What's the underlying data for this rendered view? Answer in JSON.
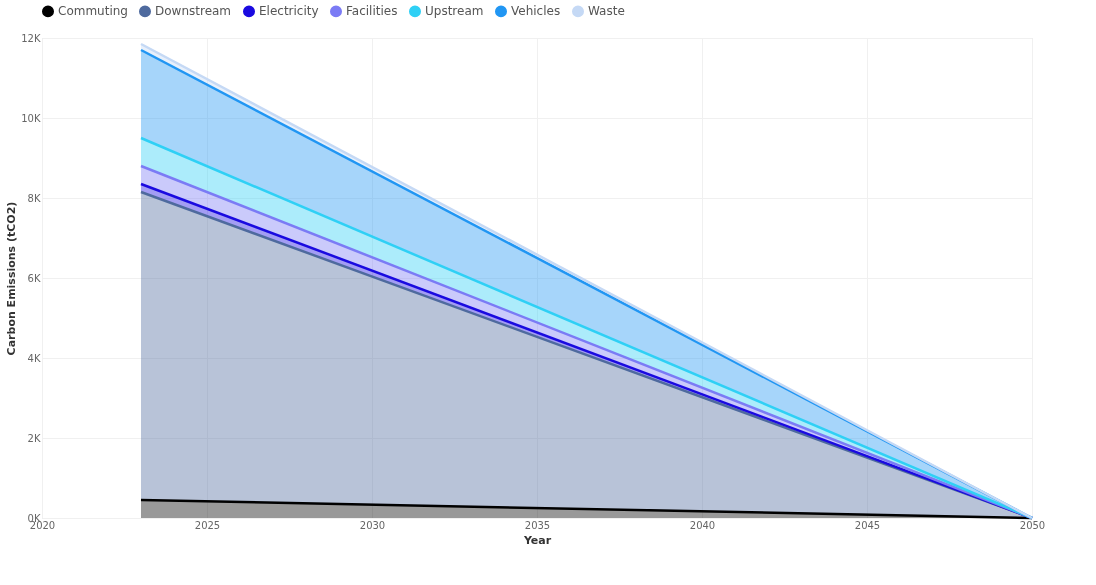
{
  "chart_data": {
    "type": "area",
    "stacked": true,
    "xlabel": "Year",
    "ylabel": "Carbon Emissions (tCO2)",
    "x": [
      2023,
      2050
    ],
    "series": [
      {
        "name": "Commuting",
        "color": "#000000",
        "values": [
          450,
          0
        ]
      },
      {
        "name": "Downstream",
        "color": "#4e6a9e",
        "values": [
          7700,
          0
        ]
      },
      {
        "name": "Electricity",
        "color": "#1a0ae0",
        "values": [
          200,
          0
        ]
      },
      {
        "name": "Facilities",
        "color": "#7b7bf5",
        "values": [
          450,
          0
        ]
      },
      {
        "name": "Upstream",
        "color": "#2fd0f5",
        "values": [
          700,
          0
        ]
      },
      {
        "name": "Vehicles",
        "color": "#2196f3",
        "values": [
          2200,
          0
        ]
      },
      {
        "name": "Waste",
        "color": "#c5d9f5",
        "values": [
          150,
          0
        ]
      }
    ],
    "xlim": [
      2020,
      2050
    ],
    "xticks": [
      2020,
      2025,
      2030,
      2035,
      2040,
      2045,
      2050
    ],
    "ylim": [
      0,
      12000
    ],
    "yticks": [
      {
        "value": 0,
        "label": "0K"
      },
      {
        "value": 2000,
        "label": "2K"
      },
      {
        "value": 4000,
        "label": "4K"
      },
      {
        "value": 6000,
        "label": "6K"
      },
      {
        "value": 8000,
        "label": "8K"
      },
      {
        "value": 10000,
        "label": "10K"
      },
      {
        "value": 12000,
        "label": "12K"
      }
    ],
    "grid": true,
    "legend": "top left"
  }
}
